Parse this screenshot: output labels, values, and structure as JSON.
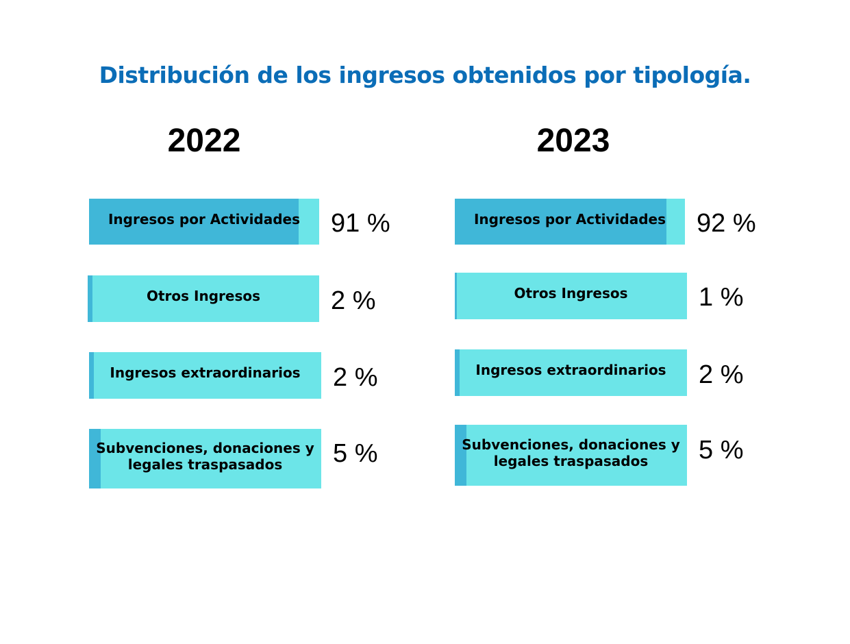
{
  "title": "Distribución de los ingresos obtenidos por tipología.",
  "colors": {
    "title": "#0b6db7",
    "bar_fill": "#40b7d8",
    "bar_track": "#6ce5e8"
  },
  "chart_data": [
    {
      "type": "bar",
      "title": "2022",
      "categories": [
        "Ingresos por Actividades",
        "Otros Ingresos",
        "Ingresos extraordinarios",
        "Subvenciones, donaciones y legales traspasados"
      ],
      "values": [
        91,
        2,
        2,
        5
      ],
      "value_labels": [
        "91 %",
        "2 %",
        "2 %",
        "5 %"
      ],
      "unit": "%",
      "xlim": [
        0,
        100
      ]
    },
    {
      "type": "bar",
      "title": "2023",
      "categories": [
        "Ingresos por Actividades",
        "Otros Ingresos",
        "Ingresos extraordinarios",
        "Subvenciones, donaciones y legales traspasados"
      ],
      "values": [
        92,
        1,
        2,
        5
      ],
      "value_labels": [
        "92 %",
        "1 %",
        "2 %",
        "5 %"
      ],
      "unit": "%",
      "xlim": [
        0,
        100
      ]
    }
  ]
}
